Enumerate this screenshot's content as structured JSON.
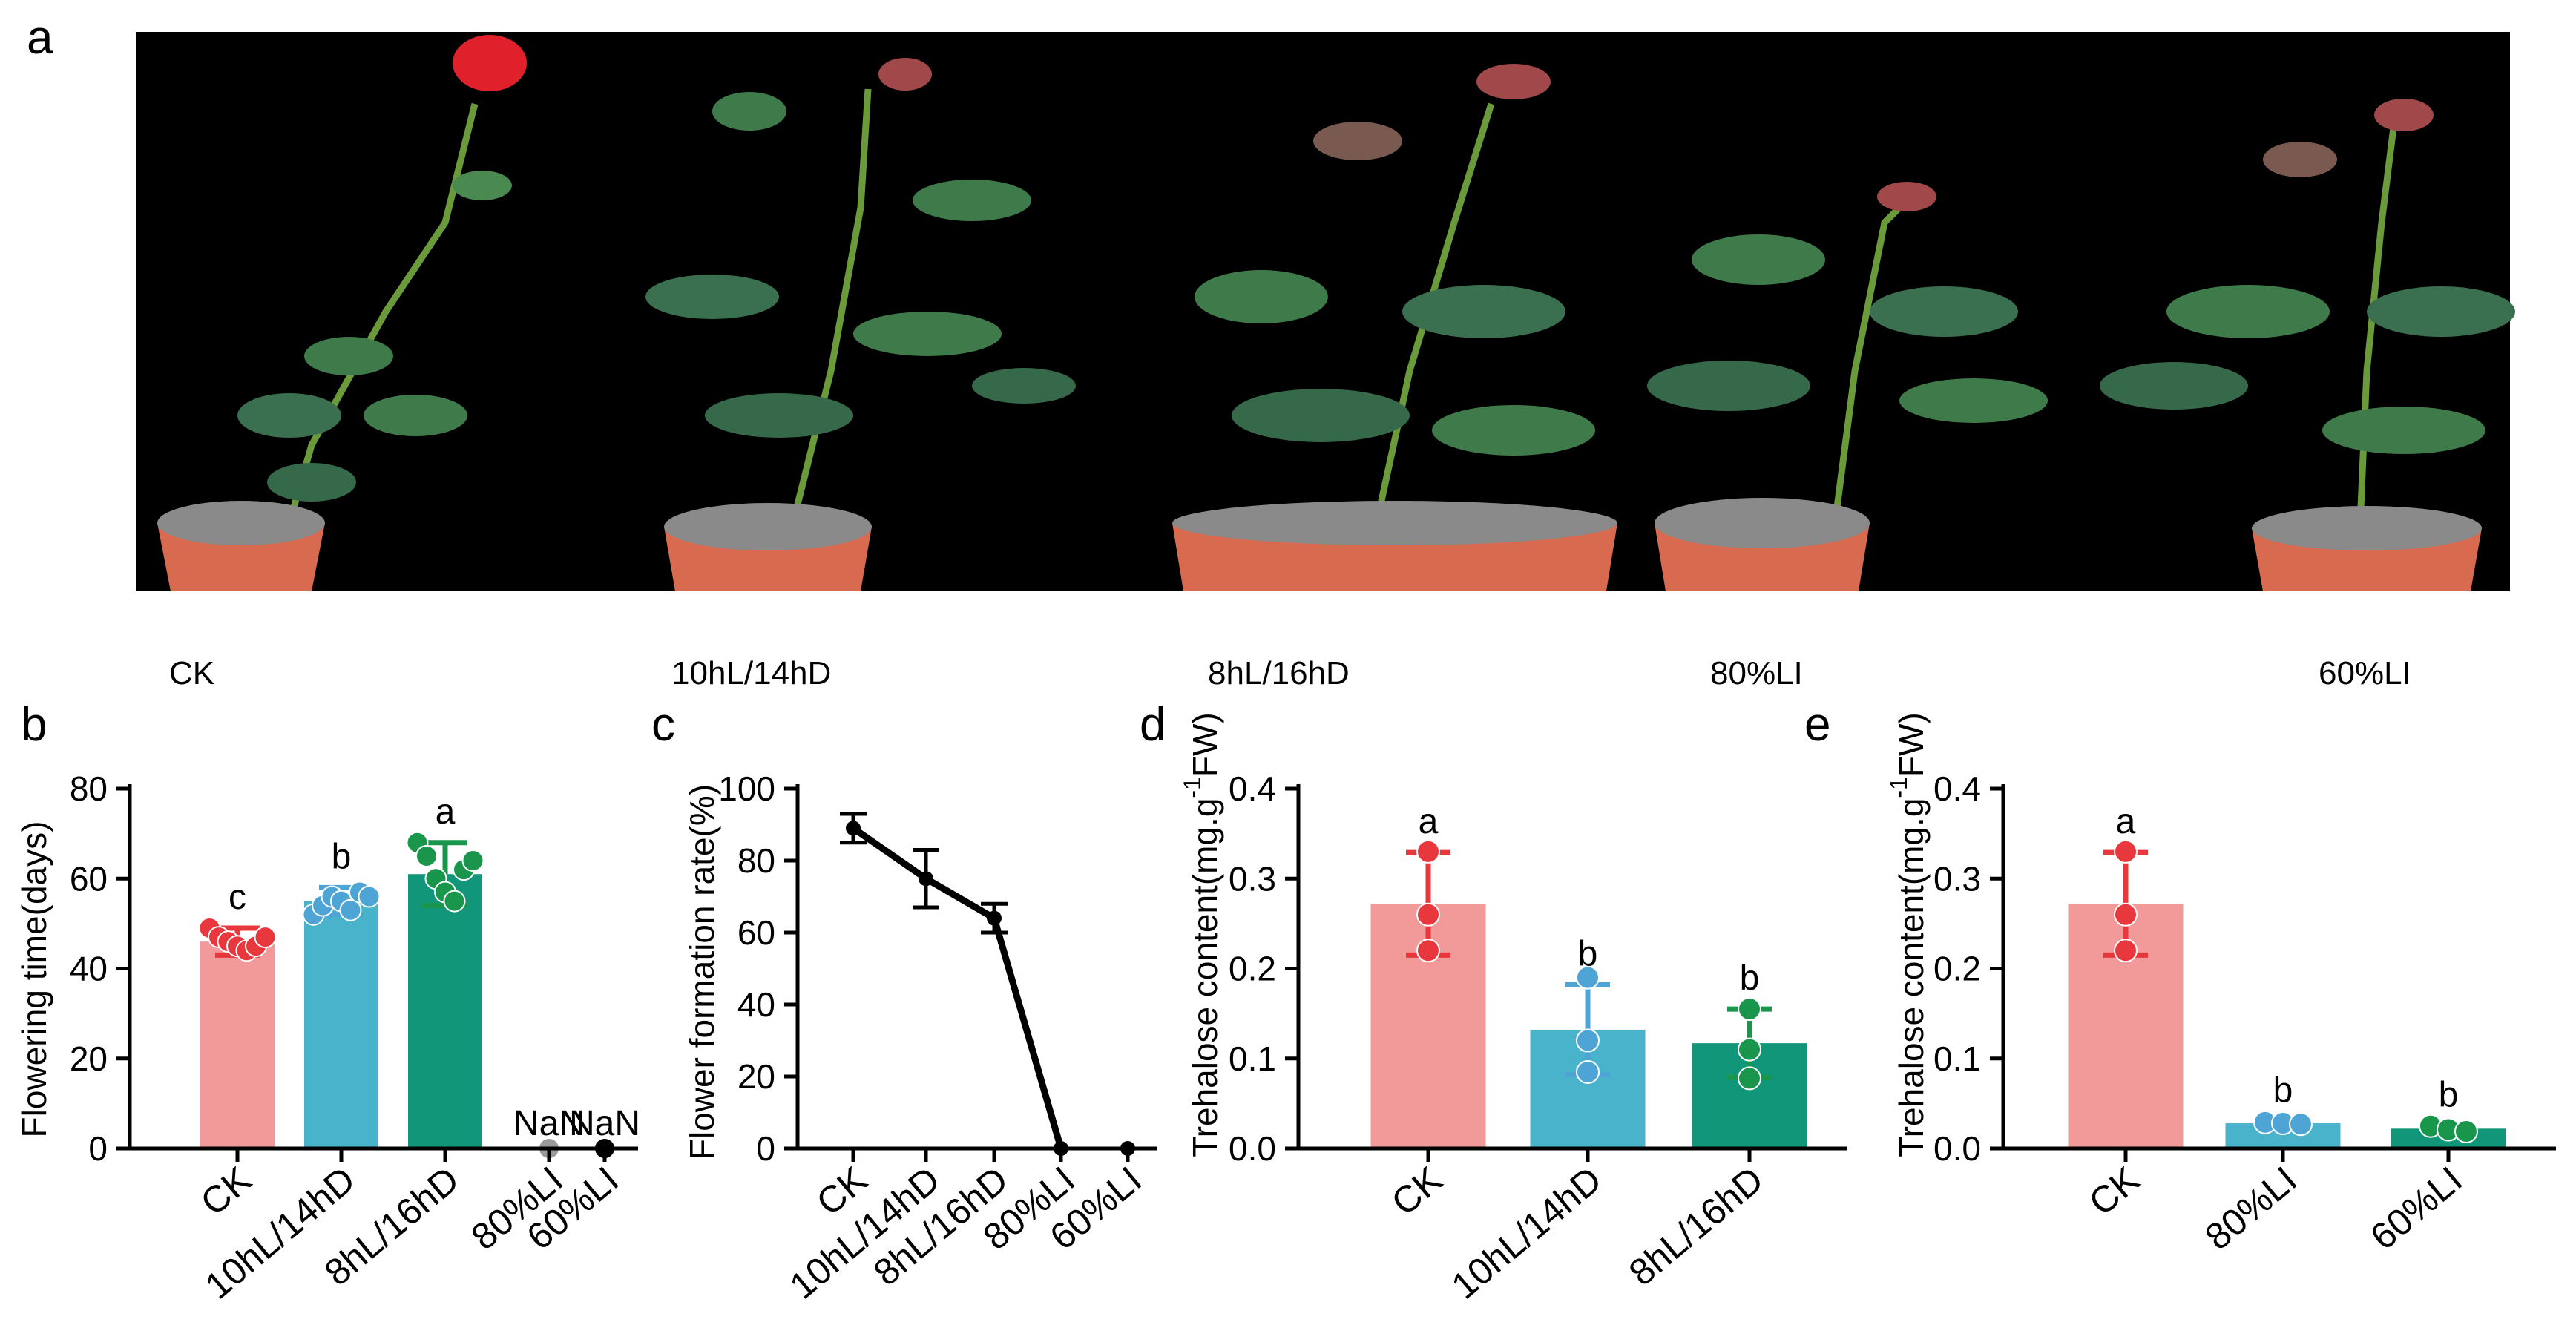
{
  "panel_labels": {
    "a": "a",
    "b": "b",
    "c": "c",
    "d": "d",
    "e": "e"
  },
  "photo": {
    "labels": [
      "CK",
      "10hL/14hD",
      "8hL/16hD",
      "80%LI",
      "60%LI"
    ]
  },
  "colors": {
    "ck": "#F29999",
    "ck_point": "#E8383D",
    "blue": "#49B3CC",
    "blue_point": "#4FA4D6",
    "green": "#12967A",
    "green_point": "#19964B",
    "black": "#000000",
    "gray_point": "#9A9A9A"
  },
  "chart_data": [
    {
      "id": "b",
      "type": "bar",
      "ylabel": "Flowering time(days)",
      "ylim": [
        0,
        80
      ],
      "yticks": [
        0,
        20,
        40,
        60,
        80
      ],
      "categories": [
        "CK",
        "10hL/14hD",
        "8hL/16hD",
        "80%LI",
        "60%LI"
      ],
      "values": [
        46,
        55,
        61,
        0,
        0
      ],
      "errors": [
        3,
        3,
        7,
        0,
        0
      ],
      "letters": [
        "c",
        "b",
        "a",
        "",
        ""
      ],
      "na_labels": [
        "",
        "",
        "",
        "NaN",
        "NaN"
      ],
      "points": [
        [
          49,
          47,
          46,
          45,
          44,
          45,
          47
        ],
        [
          52,
          54,
          56,
          55,
          53,
          57,
          56
        ],
        [
          68,
          65,
          60,
          57,
          55,
          62,
          64
        ],
        [
          0
        ],
        [
          0
        ]
      ]
    },
    {
      "id": "c",
      "type": "line",
      "ylabel": "Flower formation rate(%)",
      "ylim": [
        0,
        100
      ],
      "yticks": [
        0,
        20,
        40,
        60,
        80,
        100
      ],
      "categories": [
        "CK",
        "10hL/14hD",
        "8hL/16hD",
        "80%LI",
        "60%LI"
      ],
      "values": [
        89,
        75,
        64,
        0,
        0
      ],
      "errors": [
        4,
        8,
        4,
        0,
        0
      ]
    },
    {
      "id": "d",
      "type": "bar",
      "ylabel_main": "Trehalose content(mg.g",
      "ylabel_sup": "-1",
      "ylabel_end": "FW)",
      "ylim": [
        0,
        0.4
      ],
      "yticks": [
        "0.0",
        "0.1",
        "0.2",
        "0.3",
        "0.4"
      ],
      "categories": [
        "CK",
        "10hL/14hD",
        "8hL/16hD"
      ],
      "values": [
        0.272,
        0.132,
        0.117
      ],
      "errors": [
        0.057,
        0.05,
        0.038
      ],
      "letters": [
        "a",
        "b",
        "b"
      ],
      "points": [
        [
          0.33,
          0.26,
          0.22
        ],
        [
          0.19,
          0.12,
          0.085
        ],
        [
          0.155,
          0.11,
          0.078
        ]
      ]
    },
    {
      "id": "e",
      "type": "bar",
      "ylabel_main": "Trehalose content(mg.g",
      "ylabel_sup": "-1",
      "ylabel_end": "FW)",
      "ylim": [
        0,
        0.4
      ],
      "yticks": [
        "0.0",
        "0.1",
        "0.2",
        "0.3",
        "0.4"
      ],
      "categories": [
        "CK",
        "80%LI",
        "60%LI"
      ],
      "values": [
        0.272,
        0.028,
        0.022
      ],
      "errors": [
        0.057,
        0.002,
        0.003
      ],
      "letters": [
        "a",
        "b",
        "b"
      ],
      "points": [
        [
          0.33,
          0.26,
          0.22
        ],
        [
          0.029,
          0.028,
          0.027
        ],
        [
          0.025,
          0.021,
          0.019
        ]
      ]
    }
  ]
}
